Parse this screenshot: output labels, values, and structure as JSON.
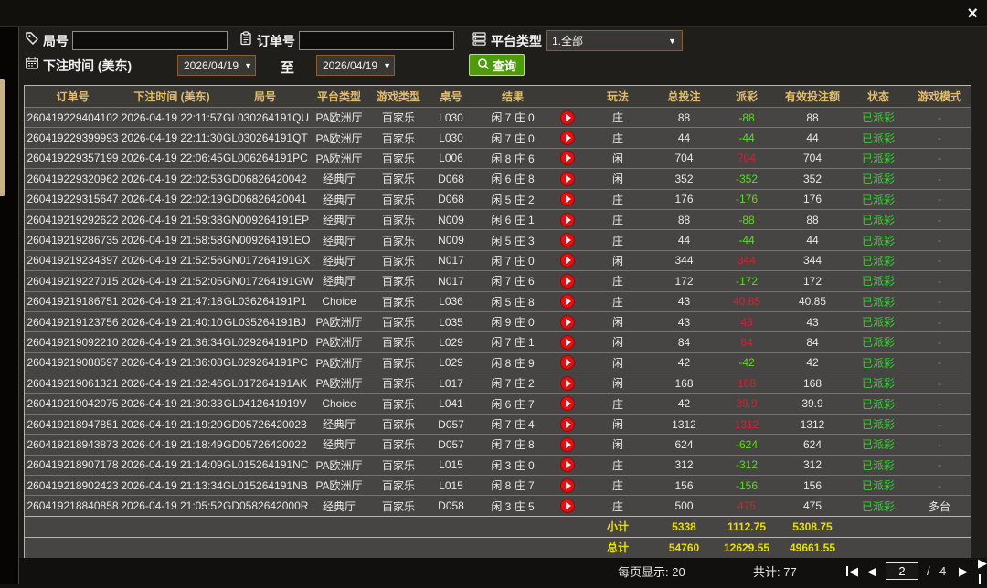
{
  "window": {
    "close_glyph": "×"
  },
  "colors": {
    "gold": "#e2bd6e",
    "green-status": "#2ed52e",
    "red-pos": "#d42034",
    "green-neg": "#5cdc1e",
    "yellow-total": "#e6e000",
    "btn-green": "#4d9a0a",
    "border-orange": "#8a5e26"
  },
  "filters": {
    "round_label": "局号",
    "order_label": "订单号",
    "platform_label": "平台类型",
    "platform_value": "1.全部",
    "bet_time_label": "下注时间 (美东)",
    "date_from": "2026/04/19",
    "to_label": "至",
    "date_to": "2026/04/19",
    "search_label": "查询",
    "dropdown_arrow": "▼"
  },
  "table": {
    "headers": [
      "订单号",
      "下注时间 (美东)",
      "局号",
      "平台类型",
      "游戏类型",
      "桌号",
      "结果",
      "玩法",
      "总投注",
      "派彩",
      "有效投注额",
      "状态",
      "游戏模式"
    ],
    "rows": [
      {
        "order": "260419229404102",
        "time": "2026-04-19 22:11:57",
        "round": "GL030264191QU",
        "platform": "PA欧洲厅",
        "game": "百家乐",
        "table": "L030",
        "result": "闲 7 庄 0",
        "bet": "庄",
        "total": "88",
        "payout": "-88",
        "valid": "88",
        "status": "已派彩",
        "mode": "-"
      },
      {
        "order": "260419229399993",
        "time": "2026-04-19 22:11:30",
        "round": "GL030264191QT",
        "platform": "PA欧洲厅",
        "game": "百家乐",
        "table": "L030",
        "result": "闲 7 庄 0",
        "bet": "庄",
        "total": "44",
        "payout": "-44",
        "valid": "44",
        "status": "已派彩",
        "mode": "-"
      },
      {
        "order": "260419229357199",
        "time": "2026-04-19 22:06:45",
        "round": "GL006264191PC",
        "platform": "PA欧洲厅",
        "game": "百家乐",
        "table": "L006",
        "result": "闲 8 庄 6",
        "bet": "闲",
        "total": "704",
        "payout": "704",
        "valid": "704",
        "status": "已派彩",
        "mode": "-"
      },
      {
        "order": "260419229320962",
        "time": "2026-04-19 22:02:53",
        "round": "GD06826420042",
        "platform": "经典厅",
        "game": "百家乐",
        "table": "D068",
        "result": "闲 6 庄 8",
        "bet": "闲",
        "total": "352",
        "payout": "-352",
        "valid": "352",
        "status": "已派彩",
        "mode": "-"
      },
      {
        "order": "260419229315647",
        "time": "2026-04-19 22:02:19",
        "round": "GD06826420041",
        "platform": "经典厅",
        "game": "百家乐",
        "table": "D068",
        "result": "闲 5 庄 2",
        "bet": "庄",
        "total": "176",
        "payout": "-176",
        "valid": "176",
        "status": "已派彩",
        "mode": "-"
      },
      {
        "order": "260419219292622",
        "time": "2026-04-19 21:59:38",
        "round": "GN009264191EP",
        "platform": "经典厅",
        "game": "百家乐",
        "table": "N009",
        "result": "闲 6 庄 1",
        "bet": "庄",
        "total": "88",
        "payout": "-88",
        "valid": "88",
        "status": "已派彩",
        "mode": "-"
      },
      {
        "order": "260419219286735",
        "time": "2026-04-19 21:58:58",
        "round": "GN009264191EO",
        "platform": "经典厅",
        "game": "百家乐",
        "table": "N009",
        "result": "闲 5 庄 3",
        "bet": "庄",
        "total": "44",
        "payout": "-44",
        "valid": "44",
        "status": "已派彩",
        "mode": "-"
      },
      {
        "order": "260419219234397",
        "time": "2026-04-19 21:52:56",
        "round": "GN017264191GX",
        "platform": "经典厅",
        "game": "百家乐",
        "table": "N017",
        "result": "闲 7 庄 0",
        "bet": "闲",
        "total": "344",
        "payout": "344",
        "valid": "344",
        "status": "已派彩",
        "mode": "-"
      },
      {
        "order": "260419219227015",
        "time": "2026-04-19 21:52:05",
        "round": "GN017264191GW",
        "platform": "经典厅",
        "game": "百家乐",
        "table": "N017",
        "result": "闲 7 庄 6",
        "bet": "庄",
        "total": "172",
        "payout": "-172",
        "valid": "172",
        "status": "已派彩",
        "mode": "-"
      },
      {
        "order": "260419219186751",
        "time": "2026-04-19 21:47:18",
        "round": "GL036264191P1",
        "platform": "Choice",
        "game": "百家乐",
        "table": "L036",
        "result": "闲 5 庄 8",
        "bet": "庄",
        "total": "43",
        "payout": "40.85",
        "valid": "40.85",
        "status": "已派彩",
        "mode": "-"
      },
      {
        "order": "260419219123756",
        "time": "2026-04-19 21:40:10",
        "round": "GL035264191BJ",
        "platform": "PA欧洲厅",
        "game": "百家乐",
        "table": "L035",
        "result": "闲 9 庄 0",
        "bet": "闲",
        "total": "43",
        "payout": "43",
        "valid": "43",
        "status": "已派彩",
        "mode": "-"
      },
      {
        "order": "260419219092210",
        "time": "2026-04-19 21:36:34",
        "round": "GL029264191PD",
        "platform": "PA欧洲厅",
        "game": "百家乐",
        "table": "L029",
        "result": "闲 7 庄 1",
        "bet": "闲",
        "total": "84",
        "payout": "84",
        "valid": "84",
        "status": "已派彩",
        "mode": "-"
      },
      {
        "order": "260419219088597",
        "time": "2026-04-19 21:36:08",
        "round": "GL029264191PC",
        "platform": "PA欧洲厅",
        "game": "百家乐",
        "table": "L029",
        "result": "闲 8 庄 9",
        "bet": "闲",
        "total": "42",
        "payout": "-42",
        "valid": "42",
        "status": "已派彩",
        "mode": "-"
      },
      {
        "order": "260419219061321",
        "time": "2026-04-19 21:32:46",
        "round": "GL017264191AK",
        "platform": "PA欧洲厅",
        "game": "百家乐",
        "table": "L017",
        "result": "闲 7 庄 2",
        "bet": "闲",
        "total": "168",
        "payout": "168",
        "valid": "168",
        "status": "已派彩",
        "mode": "-"
      },
      {
        "order": "260419219042075",
        "time": "2026-04-19 21:30:33",
        "round": "GL0412641919V",
        "platform": "Choice",
        "game": "百家乐",
        "table": "L041",
        "result": "闲 6 庄 7",
        "bet": "庄",
        "total": "42",
        "payout": "39.9",
        "valid": "39.9",
        "status": "已派彩",
        "mode": "-"
      },
      {
        "order": "260419218947851",
        "time": "2026-04-19 21:19:20",
        "round": "GD05726420023",
        "platform": "经典厅",
        "game": "百家乐",
        "table": "D057",
        "result": "闲 7 庄 4",
        "bet": "闲",
        "total": "1312",
        "payout": "1312",
        "valid": "1312",
        "status": "已派彩",
        "mode": "-"
      },
      {
        "order": "260419218943873",
        "time": "2026-04-19 21:18:49",
        "round": "GD05726420022",
        "platform": "经典厅",
        "game": "百家乐",
        "table": "D057",
        "result": "闲 7 庄 8",
        "bet": "闲",
        "total": "624",
        "payout": "-624",
        "valid": "624",
        "status": "已派彩",
        "mode": "-"
      },
      {
        "order": "260419218907178",
        "time": "2026-04-19 21:14:09",
        "round": "GL015264191NC",
        "platform": "PA欧洲厅",
        "game": "百家乐",
        "table": "L015",
        "result": "闲 3 庄 0",
        "bet": "庄",
        "total": "312",
        "payout": "-312",
        "valid": "312",
        "status": "已派彩",
        "mode": "-"
      },
      {
        "order": "260419218902423",
        "time": "2026-04-19 21:13:34",
        "round": "GL015264191NB",
        "platform": "PA欧洲厅",
        "game": "百家乐",
        "table": "L015",
        "result": "闲 8 庄 7",
        "bet": "庄",
        "total": "156",
        "payout": "-156",
        "valid": "156",
        "status": "已派彩",
        "mode": "-"
      },
      {
        "order": "260419218840858",
        "time": "2026-04-19 21:05:52",
        "round": "GD0582642000R",
        "platform": "经典厅",
        "game": "百家乐",
        "table": "D058",
        "result": "闲 3 庄 5",
        "bet": "庄",
        "total": "500",
        "payout": "475",
        "valid": "475",
        "status": "已派彩",
        "mode": "多台"
      }
    ],
    "subtotal": {
      "label": "小计",
      "total_bet": "5338",
      "payout": "1112.75",
      "valid_bet": "5308.75"
    },
    "grand_total": {
      "label": "总计",
      "total_bet": "54760",
      "payout": "12629.55",
      "valid_bet": "49661.55"
    }
  },
  "footer": {
    "page_size_label": "每页显示: 20",
    "total_count_label": "共计: 77",
    "current_page": "2",
    "page_separator": "/",
    "total_pages": "4",
    "prev_glyph": "◀",
    "next_glyph": "▶"
  }
}
